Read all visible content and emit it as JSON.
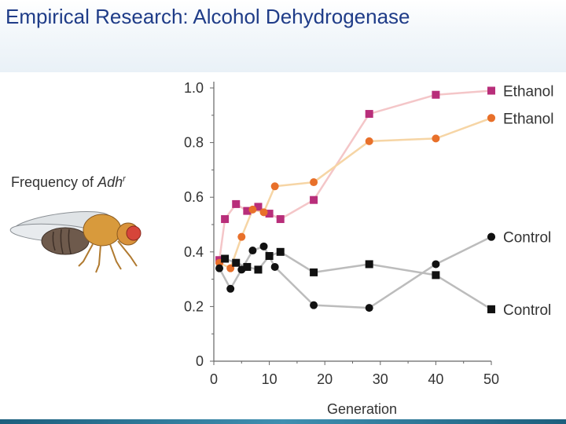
{
  "slide": {
    "title": "Empirical Research: Alcohol Dehydrogenase"
  },
  "chart_data": {
    "type": "line",
    "ylabel_prefix": "Frequency of ",
    "ylabel_gene": "Adh",
    "ylabel_sup": "r",
    "xlabel": "Generation",
    "xlim": [
      0,
      50
    ],
    "ylim": [
      0,
      1.0
    ],
    "xticks": [
      "0",
      "10",
      "20",
      "30",
      "40",
      "50"
    ],
    "yticks": [
      "0",
      "0.2",
      "0.4",
      "0.6",
      "0.8",
      "1.0"
    ],
    "series": [
      {
        "name": "Ethanol",
        "marker": "square",
        "color": "#b82e7a",
        "line_color": "#f4c6c8",
        "x": [
          1,
          2,
          4,
          6,
          8,
          10,
          12,
          18,
          28,
          40,
          50
        ],
        "y": [
          0.37,
          0.52,
          0.575,
          0.55,
          0.565,
          0.54,
          0.52,
          0.59,
          0.905,
          0.975,
          0.99
        ]
      },
      {
        "name": "Ethanol",
        "marker": "circle",
        "color": "#e8702a",
        "line_color": "#f6d5a5",
        "x": [
          1,
          3,
          5,
          7,
          9,
          11,
          18,
          28,
          40,
          50
        ],
        "y": [
          0.36,
          0.34,
          0.455,
          0.555,
          0.545,
          0.64,
          0.655,
          0.805,
          0.815,
          0.89
        ]
      },
      {
        "name": "Control",
        "marker": "circle",
        "color": "#111111",
        "line_color": "#bcbcbc",
        "x": [
          1,
          3,
          5,
          7,
          9,
          11,
          18,
          28,
          40,
          50
        ],
        "y": [
          0.34,
          0.265,
          0.335,
          0.405,
          0.42,
          0.345,
          0.205,
          0.195,
          0.355,
          0.455
        ]
      },
      {
        "name": "Control",
        "marker": "square",
        "color": "#111111",
        "line_color": "#bcbcbc",
        "x": [
          2,
          4,
          6,
          8,
          10,
          12,
          18,
          28,
          40,
          50
        ],
        "y": [
          0.375,
          0.36,
          0.345,
          0.335,
          0.385,
          0.4,
          0.325,
          0.355,
          0.315,
          0.19
        ]
      }
    ]
  }
}
